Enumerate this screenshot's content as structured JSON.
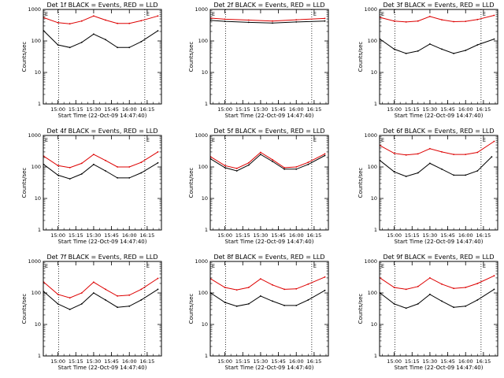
{
  "figure": {
    "xlabel": "Start Time (22-Oct-09 14:47:40)",
    "ylabel": "Counts/sec",
    "xticks": [
      "15:00",
      "15:15",
      "15:30",
      "15:45",
      "16:00",
      "16:15"
    ],
    "yticks": [
      "1",
      "10",
      "100",
      "1000"
    ],
    "corner_marker": "E",
    "colors": {
      "events": "#000000",
      "lld": "#dd0000",
      "frame": "#000000"
    }
  },
  "chart_data": [
    {
      "type": "line",
      "title": "Det 1f BLACK = Events, RED = LLD",
      "xlim": [
        "14:47:40",
        "16:27"
      ],
      "ylim": [
        1,
        1000
      ],
      "yscale": "log",
      "grid": false,
      "series": [
        {
          "name": "Events",
          "x": [
            "14:48",
            "15:00",
            "15:10",
            "15:20",
            "15:30",
            "15:40",
            "15:50",
            "16:00",
            "16:10",
            "16:24"
          ],
          "values": [
            210,
            75,
            62,
            90,
            165,
            110,
            62,
            62,
            95,
            210
          ]
        },
        {
          "name": "LLD",
          "x": [
            "14:48",
            "15:00",
            "15:10",
            "15:20",
            "15:30",
            "15:40",
            "15:50",
            "16:00",
            "16:10",
            "16:24"
          ],
          "values": [
            550,
            380,
            350,
            430,
            620,
            460,
            360,
            360,
            440,
            620
          ]
        }
      ]
    },
    {
      "type": "line",
      "title": "Det 2f BLACK = Events, RED = LLD",
      "xlim": [
        "14:47:40",
        "16:27"
      ],
      "ylim": [
        1,
        1000
      ],
      "yscale": "log",
      "grid": false,
      "series": [
        {
          "name": "Events",
          "x": [
            "14:48",
            "15:00",
            "15:20",
            "15:40",
            "16:00",
            "16:24"
          ],
          "values": [
            450,
            420,
            390,
            370,
            400,
            430
          ]
        },
        {
          "name": "LLD",
          "x": [
            "14:48",
            "15:00",
            "15:20",
            "15:40",
            "16:00",
            "16:24"
          ],
          "values": [
            530,
            490,
            460,
            430,
            470,
            520
          ]
        }
      ]
    },
    {
      "type": "line",
      "title": "Det 3f BLACK = Events, RED = LLD",
      "xlim": [
        "14:47:40",
        "16:27"
      ],
      "ylim": [
        1,
        1000
      ],
      "yscale": "log",
      "grid": false,
      "series": [
        {
          "name": "Events",
          "x": [
            "14:48",
            "15:00",
            "15:10",
            "15:20",
            "15:30",
            "15:40",
            "15:50",
            "16:00",
            "16:10",
            "16:24"
          ],
          "values": [
            115,
            55,
            40,
            48,
            80,
            55,
            40,
            50,
            75,
            115
          ]
        },
        {
          "name": "LLD",
          "x": [
            "14:48",
            "15:00",
            "15:10",
            "15:20",
            "15:30",
            "15:40",
            "15:50",
            "16:00",
            "16:10",
            "16:24"
          ],
          "values": [
            560,
            430,
            400,
            430,
            600,
            470,
            410,
            420,
            480,
            650
          ]
        }
      ]
    },
    {
      "type": "line",
      "title": "Det 4f BLACK = Events, RED = LLD",
      "xlim": [
        "14:47:40",
        "16:27"
      ],
      "ylim": [
        1,
        1000
      ],
      "yscale": "log",
      "grid": false,
      "series": [
        {
          "name": "Events",
          "x": [
            "14:48",
            "15:00",
            "15:10",
            "15:20",
            "15:30",
            "15:40",
            "15:50",
            "16:00",
            "16:10",
            "16:24"
          ],
          "values": [
            120,
            55,
            42,
            60,
            120,
            75,
            45,
            45,
            65,
            135
          ]
        },
        {
          "name": "LLD",
          "x": [
            "14:48",
            "15:00",
            "15:10",
            "15:20",
            "15:30",
            "15:40",
            "15:50",
            "16:00",
            "16:10",
            "16:24"
          ],
          "values": [
            220,
            110,
            95,
            130,
            250,
            160,
            100,
            100,
            140,
            300
          ]
        }
      ]
    },
    {
      "type": "line",
      "title": "Det 5f BLACK = Events, RED = LLD",
      "xlim": [
        "14:47:40",
        "16:27"
      ],
      "ylim": [
        1,
        1000
      ],
      "yscale": "log",
      "grid": false,
      "series": [
        {
          "name": "Events",
          "x": [
            "14:48",
            "15:00",
            "15:10",
            "15:20",
            "15:30",
            "15:40",
            "15:50",
            "16:00",
            "16:10",
            "16:24"
          ],
          "values": [
            180,
            95,
            75,
            115,
            250,
            150,
            85,
            85,
            120,
            230
          ]
        },
        {
          "name": "LLD",
          "x": [
            "14:48",
            "15:00",
            "15:10",
            "15:20",
            "15:30",
            "15:40",
            "15:50",
            "16:00",
            "16:10",
            "16:24"
          ],
          "values": [
            210,
            110,
            90,
            135,
            290,
            170,
            95,
            100,
            140,
            260
          ]
        }
      ]
    },
    {
      "type": "line",
      "title": "Det 6f BLACK = Events, RED = LLD",
      "xlim": [
        "14:47:40",
        "16:27"
      ],
      "ylim": [
        1,
        1000
      ],
      "yscale": "log",
      "grid": false,
      "series": [
        {
          "name": "Events",
          "x": [
            "14:48",
            "15:00",
            "15:10",
            "15:20",
            "15:30",
            "15:40",
            "15:50",
            "16:00",
            "16:10",
            "16:22"
          ],
          "values": [
            160,
            70,
            50,
            65,
            130,
            85,
            55,
            55,
            75,
            210
          ]
        },
        {
          "name": "LLD",
          "x": [
            "14:48",
            "15:00",
            "15:10",
            "15:20",
            "15:30",
            "15:40",
            "15:50",
            "16:00",
            "16:10",
            "16:24"
          ],
          "values": [
            480,
            270,
            240,
            260,
            380,
            300,
            250,
            250,
            290,
            650
          ]
        }
      ]
    },
    {
      "type": "line",
      "title": "Det 7f BLACK = Events, RED = LLD",
      "xlim": [
        "14:47:40",
        "16:27"
      ],
      "ylim": [
        1,
        1000
      ],
      "yscale": "log",
      "grid": false,
      "series": [
        {
          "name": "Events",
          "x": [
            "14:48",
            "15:00",
            "15:10",
            "15:20",
            "15:30",
            "15:40",
            "15:50",
            "16:00",
            "16:10",
            "16:24"
          ],
          "values": [
            110,
            45,
            30,
            45,
            100,
            60,
            35,
            38,
            60,
            130
          ]
        },
        {
          "name": "LLD",
          "x": [
            "14:48",
            "15:00",
            "15:10",
            "15:20",
            "15:30",
            "15:40",
            "15:50",
            "16:00",
            "16:10",
            "16:24"
          ],
          "values": [
            220,
            90,
            70,
            100,
            220,
            130,
            80,
            85,
            130,
            290
          ]
        }
      ]
    },
    {
      "type": "line",
      "title": "Det 8f BLACK = Events, RED = LLD",
      "xlim": [
        "14:47:40",
        "16:27"
      ],
      "ylim": [
        1,
        1000
      ],
      "yscale": "log",
      "grid": false,
      "series": [
        {
          "name": "Events",
          "x": [
            "14:48",
            "15:00",
            "15:10",
            "15:20",
            "15:30",
            "15:40",
            "15:50",
            "16:00",
            "16:10",
            "16:24"
          ],
          "values": [
            100,
            50,
            38,
            45,
            80,
            55,
            40,
            40,
            60,
            120
          ]
        },
        {
          "name": "LLD",
          "x": [
            "14:48",
            "15:00",
            "15:10",
            "15:20",
            "15:30",
            "15:40",
            "15:50",
            "16:00",
            "16:10",
            "16:24"
          ],
          "values": [
            280,
            150,
            125,
            150,
            280,
            180,
            130,
            135,
            190,
            320
          ]
        }
      ]
    },
    {
      "type": "line",
      "title": "Det 9f BLACK = Events, RED = LLD",
      "xlim": [
        "14:47:40",
        "16:27"
      ],
      "ylim": [
        1,
        1000
      ],
      "yscale": "log",
      "grid": false,
      "series": [
        {
          "name": "Events",
          "x": [
            "14:48",
            "15:00",
            "15:10",
            "15:20",
            "15:30",
            "15:40",
            "15:50",
            "16:00",
            "16:10",
            "16:24"
          ],
          "values": [
            100,
            45,
            33,
            45,
            90,
            55,
            35,
            38,
            60,
            130
          ]
        },
        {
          "name": "LLD",
          "x": [
            "14:48",
            "15:00",
            "15:10",
            "15:20",
            "15:30",
            "15:40",
            "15:50",
            "16:00",
            "16:10",
            "16:24"
          ],
          "values": [
            300,
            150,
            130,
            160,
            300,
            190,
            140,
            150,
            200,
            350
          ]
        }
      ]
    }
  ]
}
